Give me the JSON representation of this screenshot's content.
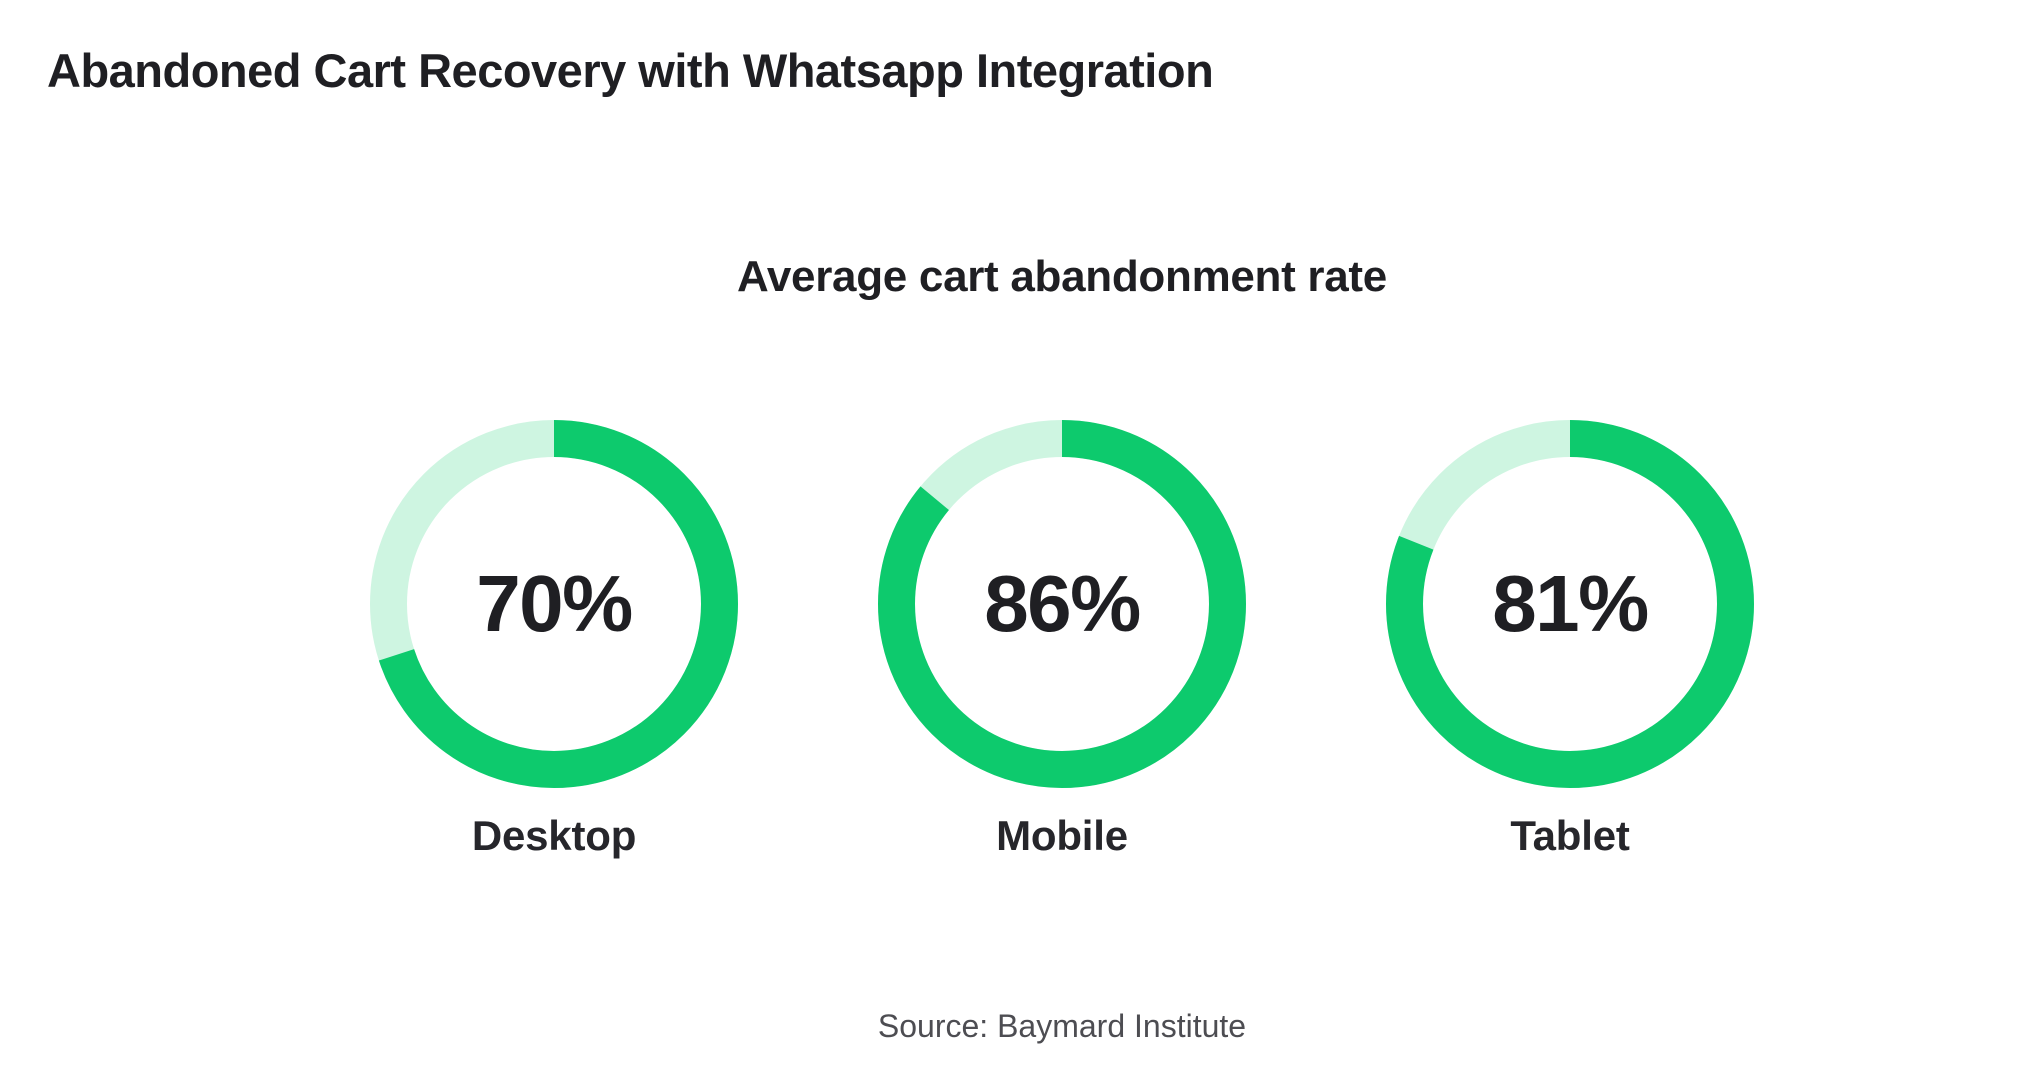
{
  "page": {
    "background": "#ffffff"
  },
  "header": {
    "title": "Abandoned Cart Recovery with Whatsapp Integration"
  },
  "chart_data": {
    "type": "donut",
    "title": "Average cart abandonment rate",
    "categories": [
      "Desktop",
      "Mobile",
      "Tablet"
    ],
    "values": [
      70,
      86,
      81
    ],
    "unit": "%",
    "start_angle_deg": 0,
    "direction": "clockwise",
    "donuts": [
      {
        "value": 70,
        "value_label": "70%",
        "category": "Desktop"
      },
      {
        "value": 86,
        "value_label": "86%",
        "category": "Mobile"
      },
      {
        "value": 81,
        "value_label": "81%",
        "category": "Tablet"
      }
    ],
    "colors": {
      "progress": "#0dca6d",
      "track": "#cef5e1",
      "value_text": "#1f1f23",
      "title_text": "#1f1f23",
      "source_text": "#4d4d52"
    },
    "source": "Source: Baymard Institute"
  }
}
